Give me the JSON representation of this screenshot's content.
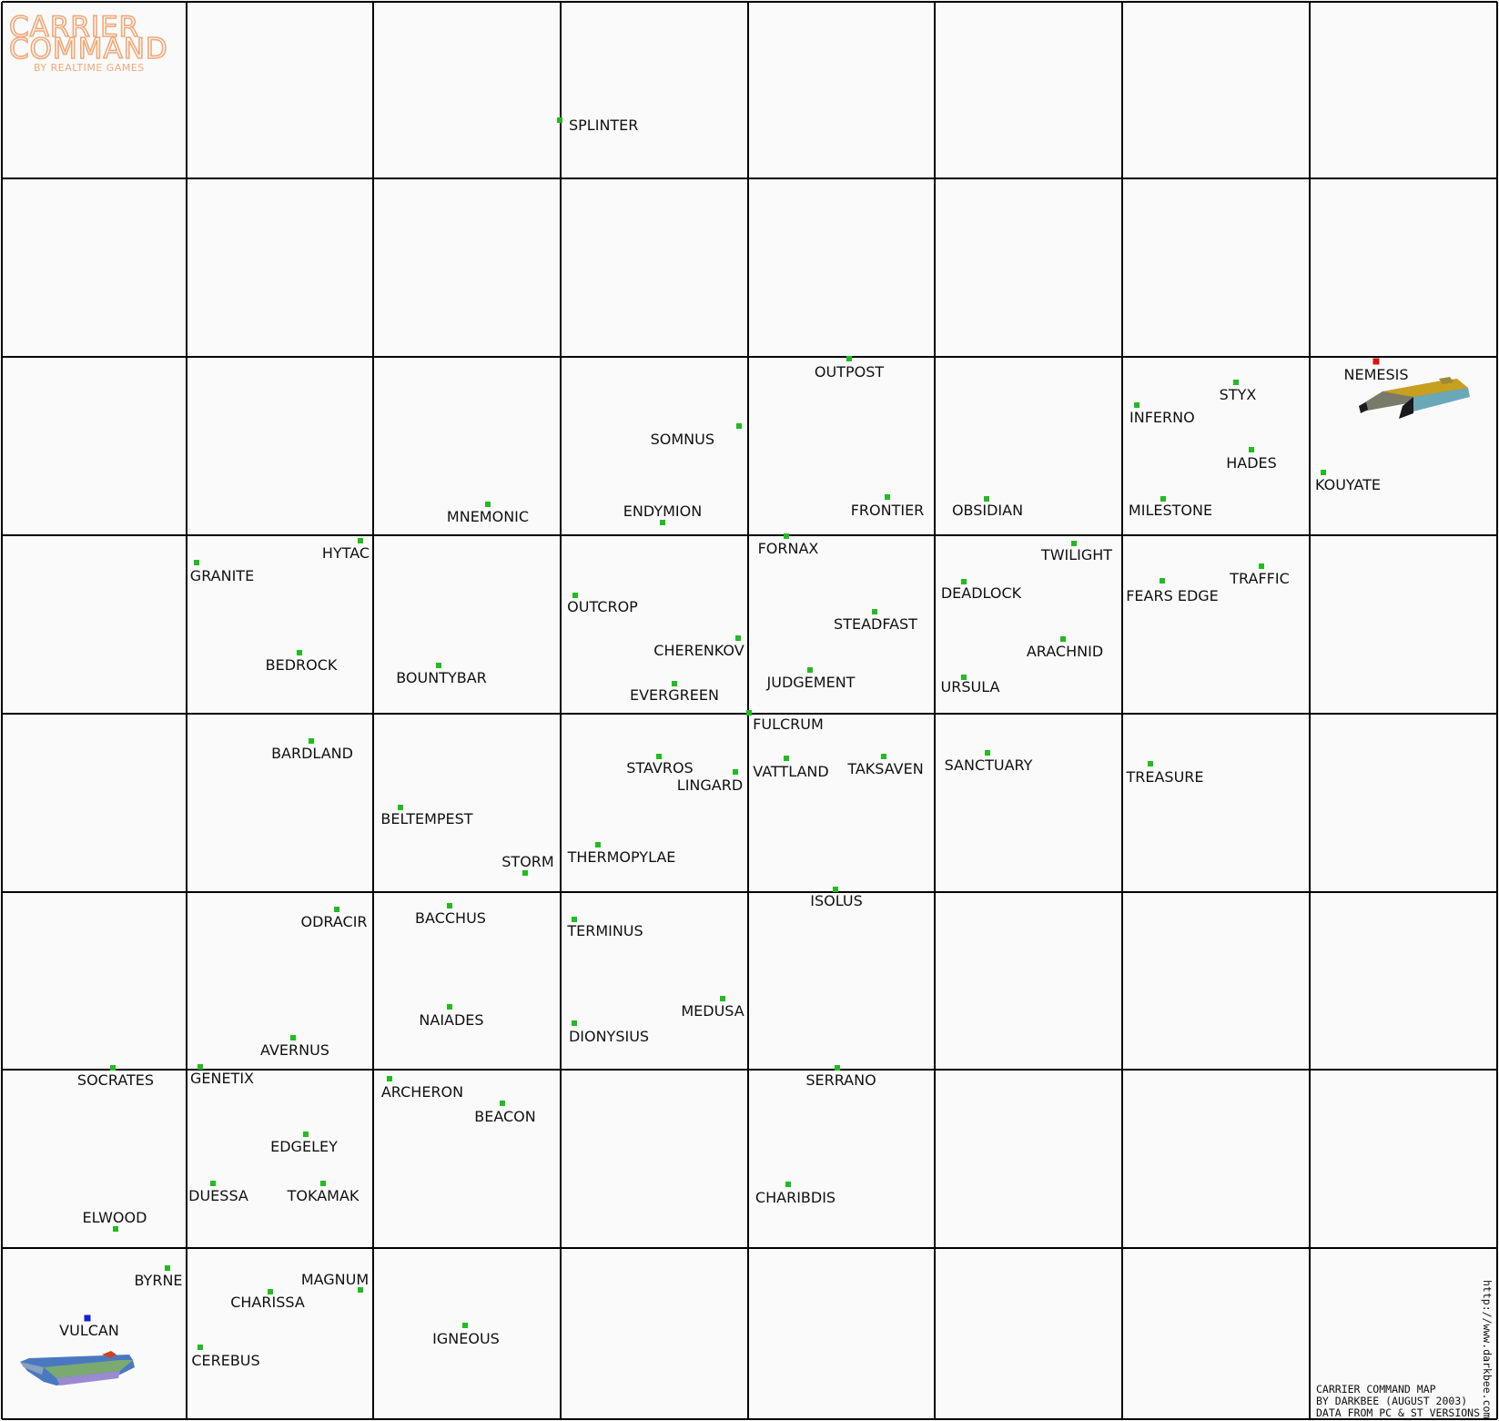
{
  "logo": {
    "title_line1": "CARRIER",
    "title_line2": "COMMAND",
    "subtitle": "BY REALTIME GAMES"
  },
  "credits": {
    "line1": "CARRIER COMMAND MAP",
    "line2": "BY DARKBEE (AUGUST 2003)",
    "line3": "DATA FROM PC & ST VERSIONS",
    "url": "http://www.darkbee.com"
  },
  "colors": {
    "neutral_island": "#22bb22",
    "enemy_base": "#dd1111",
    "player_base": "#1122cc",
    "grid_line": "#000000",
    "sea": "#fafafa",
    "logo": "#f0a878"
  },
  "carriers": [
    {
      "name": "enemy-carrier",
      "owner": "enemy",
      "near": "NEMESIS"
    },
    {
      "name": "player-carrier",
      "owner": "player",
      "near": "VULCAN"
    }
  ],
  "islands": [
    {
      "name": "SPLINTER",
      "type": "neutral"
    },
    {
      "name": "OUTPOST",
      "type": "neutral"
    },
    {
      "name": "SOMNUS",
      "type": "neutral"
    },
    {
      "name": "NEMESIS",
      "type": "enemy"
    },
    {
      "name": "STYX",
      "type": "neutral"
    },
    {
      "name": "INFERNO",
      "type": "neutral"
    },
    {
      "name": "HADES",
      "type": "neutral"
    },
    {
      "name": "KOUYATE",
      "type": "neutral"
    },
    {
      "name": "MNEMONIC",
      "type": "neutral"
    },
    {
      "name": "ENDYMION",
      "type": "neutral"
    },
    {
      "name": "FRONTIER",
      "type": "neutral"
    },
    {
      "name": "OBSIDIAN",
      "type": "neutral"
    },
    {
      "name": "MILESTONE",
      "type": "neutral"
    },
    {
      "name": "HYTAC",
      "type": "neutral"
    },
    {
      "name": "GRANITE",
      "type": "neutral"
    },
    {
      "name": "FORNAX",
      "type": "neutral"
    },
    {
      "name": "TWILIGHT",
      "type": "neutral"
    },
    {
      "name": "TRAFFIC",
      "type": "neutral"
    },
    {
      "name": "FEARS EDGE",
      "type": "neutral"
    },
    {
      "name": "DEADLOCK",
      "type": "neutral"
    },
    {
      "name": "OUTCROP",
      "type": "neutral"
    },
    {
      "name": "STEADFAST",
      "type": "neutral"
    },
    {
      "name": "CHERENKOV",
      "type": "neutral"
    },
    {
      "name": "ARACHNID",
      "type": "neutral"
    },
    {
      "name": "BEDROCK",
      "type": "neutral"
    },
    {
      "name": "BOUNTYBAR",
      "type": "neutral"
    },
    {
      "name": "JUDGEMENT",
      "type": "neutral"
    },
    {
      "name": "URSULA",
      "type": "neutral"
    },
    {
      "name": "EVERGREEN",
      "type": "neutral"
    },
    {
      "name": "FULCRUM",
      "type": "neutral"
    },
    {
      "name": "BARDLAND",
      "type": "neutral"
    },
    {
      "name": "SANCTUARY",
      "type": "neutral"
    },
    {
      "name": "STAVROS",
      "type": "neutral"
    },
    {
      "name": "VATTLAND",
      "type": "neutral"
    },
    {
      "name": "TAKSAVEN",
      "type": "neutral"
    },
    {
      "name": "TREASURE",
      "type": "neutral"
    },
    {
      "name": "LINGARD",
      "type": "neutral"
    },
    {
      "name": "BELTEMPEST",
      "type": "neutral"
    },
    {
      "name": "THERMOPYLAE",
      "type": "neutral"
    },
    {
      "name": "STORM",
      "type": "neutral"
    },
    {
      "name": "ISOLUS",
      "type": "neutral"
    },
    {
      "name": "BACCHUS",
      "type": "neutral"
    },
    {
      "name": "ODRACIR",
      "type": "neutral"
    },
    {
      "name": "TERMINUS",
      "type": "neutral"
    },
    {
      "name": "MEDUSA",
      "type": "neutral"
    },
    {
      "name": "NAIADES",
      "type": "neutral"
    },
    {
      "name": "DIONYSIUS",
      "type": "neutral"
    },
    {
      "name": "AVERNUS",
      "type": "neutral"
    },
    {
      "name": "SOCRATES",
      "type": "neutral"
    },
    {
      "name": "GENETIX",
      "type": "neutral"
    },
    {
      "name": "SERRANO",
      "type": "neutral"
    },
    {
      "name": "ARCHERON",
      "type": "neutral"
    },
    {
      "name": "BEACON",
      "type": "neutral"
    },
    {
      "name": "EDGELEY",
      "type": "neutral"
    },
    {
      "name": "CHARIBDIS",
      "type": "neutral"
    },
    {
      "name": "DUESSA",
      "type": "neutral"
    },
    {
      "name": "TOKAMAK",
      "type": "neutral"
    },
    {
      "name": "ELWOOD",
      "type": "neutral"
    },
    {
      "name": "BYRNE",
      "type": "neutral"
    },
    {
      "name": "MAGNUM",
      "type": "neutral"
    },
    {
      "name": "CHARISSA",
      "type": "neutral"
    },
    {
      "name": "VULCAN",
      "type": "player"
    },
    {
      "name": "IGNEOUS",
      "type": "neutral"
    },
    {
      "name": "CEREBUS",
      "type": "neutral"
    }
  ]
}
